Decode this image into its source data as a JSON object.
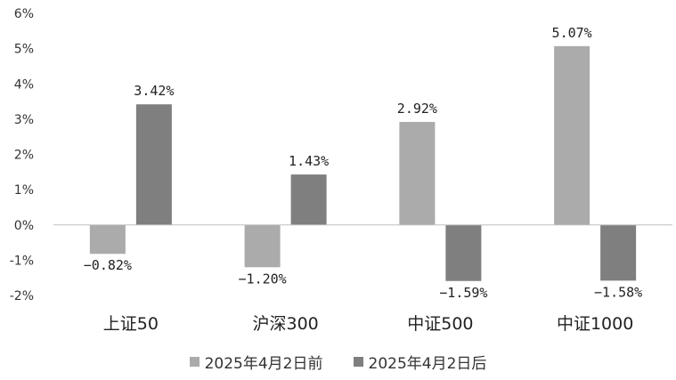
{
  "chart_data": {
    "type": "bar",
    "title": "",
    "categories": [
      "上证50",
      "沪深300",
      "中证500",
      "中证1000"
    ],
    "series": [
      {
        "name": "2025年4月2日前",
        "values": [
          -0.82,
          -1.2,
          2.92,
          5.07
        ],
        "labels": [
          "−0.82%",
          "−1.20%",
          "2.92%",
          "5.07%"
        ],
        "color": "#ababab"
      },
      {
        "name": "2025年4月2日后",
        "values": [
          3.42,
          1.43,
          -1.59,
          -1.58
        ],
        "labels": [
          "3.42%",
          "1.43%",
          "−1.59%",
          "−1.58%"
        ],
        "color": "#7f7f7f"
      }
    ],
    "y_ticks": [
      "6%",
      "5%",
      "4%",
      "3%",
      "2%",
      "1%",
      "0%",
      "-1%",
      "-2%"
    ],
    "ylim": [
      -2,
      6
    ],
    "grid": false,
    "legend_position": "bottom"
  }
}
